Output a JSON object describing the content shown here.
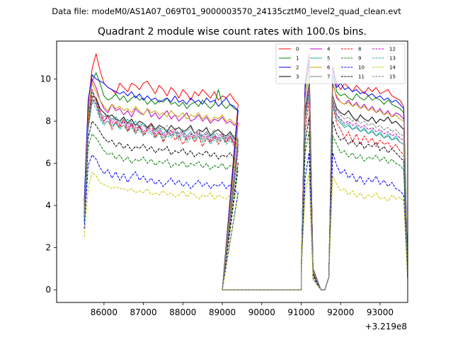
{
  "chart_data": {
    "type": "line",
    "suptitle": "Data file: modeM0/AS1A07_069T01_9000003570_24135cztM0_level2_quad_clean.evt",
    "title": "Quadrant 2 module wise count rates with 100.0s bins.",
    "xlabel": "",
    "ylabel": "",
    "offset_text": "+3.219e8",
    "xlim": [
      84800,
      93700
    ],
    "ylim": [
      -0.6,
      11.8
    ],
    "xticks": [
      86000,
      87000,
      88000,
      89000,
      90000,
      91000,
      92000,
      93000
    ],
    "yticks": [
      0,
      2,
      4,
      6,
      8,
      10
    ],
    "xtick_labels": [
      "86000",
      "87000",
      "88000",
      "89000",
      "90000",
      "91000",
      "92000",
      "93000"
    ],
    "ytick_labels": [
      "0",
      "2",
      "4",
      "6",
      "8",
      "10"
    ],
    "gaps": [
      [
        89000,
        91000
      ],
      [
        91300,
        91700
      ]
    ],
    "series": [
      {
        "name": "0",
        "color": "#ff0000",
        "dash": "solid",
        "seg1": [
          4.0,
          8.8,
          10.5,
          11.2,
          10.4,
          9.8,
          9.6,
          9.5,
          9.3,
          9.8,
          9.6,
          9.4,
          9.8,
          9.7,
          9.5,
          9.8,
          9.9,
          9.6,
          9.3,
          9.7,
          9.5,
          9.2,
          9.6,
          9.4,
          9.1,
          9.5,
          9.3,
          9.0,
          9.4,
          9.2,
          9.5,
          9.3,
          9.1,
          9.4,
          9.0,
          9.2,
          9.1,
          9.3,
          9.0,
          8.8
        ],
        "spike1": [
          9.9,
          11.2,
          10.1
        ],
        "seg2": [
          10.6,
          9.8,
          9.5,
          9.8,
          9.6,
          9.4,
          9.7,
          9.5,
          9.3,
          9.6,
          9.4,
          9.6,
          9.3,
          9.4,
          9.5,
          9.2,
          9.1,
          9.0,
          8.7,
          0.7
        ]
      },
      {
        "name": "1",
        "color": "#008000",
        "dash": "solid",
        "seg1": [
          3.8,
          8.4,
          9.9,
          10.3,
          9.8,
          9.2,
          9.0,
          9.1,
          9.3,
          9.0,
          9.2,
          8.9,
          9.1,
          9.2,
          9.0,
          9.1,
          8.8,
          9.0,
          8.8,
          9.0,
          8.9,
          9.1,
          8.8,
          8.9,
          8.7,
          8.9,
          8.6,
          8.8,
          8.9,
          8.7,
          9.0,
          8.8,
          8.6,
          8.8,
          9.5,
          8.8,
          8.6,
          8.8,
          8.6,
          8.5
        ],
        "spike1": [
          9.5,
          10.8,
          9.8
        ],
        "seg2": [
          10.2,
          9.4,
          9.2,
          9.3,
          9.1,
          9.0,
          9.3,
          9.1,
          9.0,
          9.2,
          9.0,
          9.1,
          9.0,
          8.8,
          9.0,
          8.8,
          8.7,
          8.6,
          8.4,
          0.7
        ]
      },
      {
        "name": "2",
        "color": "#0000ff",
        "dash": "solid",
        "seg1": [
          4.2,
          9.0,
          10.2,
          10.0,
          9.9,
          9.8,
          9.6,
          9.5,
          9.4,
          9.3,
          9.4,
          9.2,
          9.4,
          9.1,
          9.3,
          9.0,
          9.2,
          9.0,
          9.1,
          8.9,
          9.0,
          9.1,
          8.9,
          9.2,
          8.9,
          9.0,
          8.8,
          9.1,
          8.9,
          9.0,
          8.8,
          9.1,
          8.9,
          9.0,
          8.7,
          8.9,
          9.1,
          8.8,
          8.7,
          8.5
        ],
        "spike1": [
          9.8,
          10.9,
          9.9
        ],
        "seg2": [
          10.5,
          9.6,
          9.8,
          9.5,
          9.6,
          9.4,
          9.5,
          9.3,
          9.4,
          9.2,
          9.3,
          9.1,
          9.2,
          9.0,
          9.1,
          8.9,
          9.0,
          8.8,
          8.6,
          0.7
        ]
      },
      {
        "name": "3",
        "color": "#000000",
        "dash": "solid",
        "seg1": [
          3.4,
          7.8,
          9.2,
          9.1,
          8.6,
          8.4,
          8.2,
          8.3,
          8.1,
          8.0,
          8.2,
          7.9,
          8.1,
          7.8,
          8.0,
          7.9,
          7.7,
          7.9,
          7.6,
          7.8,
          7.7,
          7.5,
          7.8,
          7.6,
          7.7,
          7.5,
          7.6,
          7.8,
          7.4,
          7.6,
          7.5,
          7.7,
          7.3,
          7.5,
          7.6,
          7.4,
          7.3,
          7.5,
          7.2,
          7.1
        ],
        "spike1": [
          8.5,
          9.8,
          8.8
        ],
        "seg2": [
          9.2,
          8.6,
          8.4,
          8.3,
          8.5,
          8.2,
          8.0,
          8.3,
          8.1,
          8.0,
          8.2,
          7.9,
          8.1,
          8.0,
          8.2,
          7.9,
          8.0,
          7.8,
          7.6,
          0.6
        ]
      },
      {
        "name": "4",
        "color": "#bf00bf",
        "dash": "solid",
        "seg1": [
          3.6,
          8.2,
          10.0,
          9.6,
          9.0,
          8.6,
          8.4,
          8.8,
          8.5,
          8.6,
          8.3,
          8.5,
          8.2,
          8.6,
          8.4,
          8.3,
          8.6,
          8.2,
          8.4,
          8.1,
          8.3,
          8.5,
          8.1,
          8.3,
          8.0,
          8.2,
          8.4,
          8.0,
          8.1,
          8.3,
          8.0,
          8.2,
          7.9,
          8.1,
          8.0,
          8.2,
          7.9,
          8.0,
          7.8,
          7.9
        ],
        "spike1": [
          9.0,
          10.4,
          9.3
        ],
        "seg2": [
          9.8,
          9.1,
          8.9,
          8.8,
          9.0,
          8.7,
          8.9,
          8.6,
          8.8,
          8.5,
          8.7,
          8.4,
          8.6,
          8.3,
          8.5,
          8.2,
          8.4,
          8.3,
          8.1,
          0.6
        ]
      },
      {
        "name": "5",
        "color": "#20b2aa",
        "dash": "solid",
        "seg1": [
          3.5,
          7.9,
          9.4,
          9.0,
          8.4,
          8.2,
          8.3,
          8.1,
          8.2,
          8.0,
          7.9,
          8.1,
          7.8,
          8.0,
          7.7,
          7.9,
          7.6,
          7.8,
          7.5,
          7.7,
          7.4,
          7.6,
          7.3,
          7.5,
          7.4,
          7.6,
          7.3,
          7.5,
          7.2,
          7.4,
          7.3,
          7.5,
          7.2,
          7.4,
          7.1,
          7.3,
          7.2,
          7.4,
          7.1,
          7.0
        ],
        "spike1": [
          8.3,
          9.6,
          8.6
        ],
        "seg2": [
          9.0,
          8.3,
          8.0,
          7.8,
          7.9,
          7.6,
          7.8,
          7.5,
          7.7,
          7.4,
          7.6,
          7.3,
          7.5,
          7.2,
          7.4,
          7.1,
          7.3,
          7.0,
          6.9,
          0.6
        ]
      },
      {
        "name": "6",
        "color": "#c8a400",
        "dash": "solid",
        "seg1": [
          3.7,
          8.3,
          9.8,
          9.4,
          9.0,
          8.7,
          8.5,
          8.8,
          8.6,
          8.7,
          8.5,
          8.6,
          8.4,
          8.7,
          8.5,
          8.3,
          8.6,
          8.4,
          8.5,
          8.3,
          8.4,
          8.2,
          8.5,
          8.3,
          8.2,
          8.4,
          8.1,
          8.3,
          8.2,
          8.4,
          8.1,
          8.3,
          8.0,
          8.2,
          8.1,
          8.3,
          8.0,
          8.1,
          7.9,
          7.8
        ],
        "spike1": [
          9.1,
          10.3,
          9.2
        ],
        "seg2": [
          9.7,
          9.2,
          8.9,
          8.8,
          8.9,
          8.7,
          8.8,
          8.6,
          8.7,
          8.5,
          8.6,
          8.4,
          8.5,
          8.3,
          8.4,
          8.2,
          8.3,
          8.1,
          8.0,
          0.6
        ]
      },
      {
        "name": "7",
        "color": "#808080",
        "dash": "solid",
        "seg1": [
          3.3,
          7.6,
          9.0,
          8.8,
          8.2,
          7.9,
          8.0,
          7.8,
          7.9,
          7.7,
          7.8,
          7.6,
          7.8,
          7.5,
          7.7,
          7.4,
          7.6,
          7.5,
          7.3,
          7.5,
          7.2,
          7.4,
          7.3,
          7.5,
          7.2,
          7.4,
          7.1,
          7.3,
          7.2,
          7.4,
          7.1,
          7.3,
          7.0,
          7.2,
          7.1,
          7.3,
          7.0,
          7.2,
          6.9,
          6.8
        ],
        "spike1": [
          8.0,
          9.4,
          8.3
        ],
        "seg2": [
          8.8,
          8.1,
          7.9,
          7.7,
          7.8,
          7.6,
          7.7,
          7.5,
          7.6,
          7.4,
          7.5,
          7.3,
          7.4,
          7.2,
          7.3,
          7.1,
          7.2,
          7.0,
          6.9,
          0.6
        ]
      },
      {
        "name": "8",
        "color": "#ff0000",
        "dash": "dashed",
        "seg1": [
          3.6,
          8.0,
          9.5,
          9.0,
          8.5,
          8.0,
          8.3,
          7.6,
          8.0,
          7.7,
          8.1,
          7.5,
          7.9,
          7.4,
          7.8,
          7.3,
          7.6,
          7.9,
          7.2,
          7.5,
          7.0,
          7.4,
          7.6,
          7.1,
          7.3,
          6.9,
          7.2,
          7.4,
          7.0,
          7.3,
          6.8,
          7.2,
          7.0,
          7.3,
          6.9,
          7.2,
          7.0,
          7.3,
          6.9,
          6.6
        ],
        "spike1": [
          7.5,
          9.0,
          7.8
        ],
        "seg2": [
          8.8,
          7.9,
          7.6,
          7.2,
          7.5,
          7.0,
          7.4,
          6.9,
          7.3,
          7.0,
          7.2,
          6.8,
          7.1,
          6.9,
          7.0,
          6.7,
          6.9,
          6.6,
          6.4,
          0.6
        ]
      },
      {
        "name": "9",
        "color": "#008000",
        "dash": "dashed",
        "seg1": [
          3.2,
          6.8,
          7.4,
          7.2,
          6.9,
          6.6,
          6.4,
          6.5,
          6.2,
          6.4,
          6.1,
          6.3,
          6.0,
          6.2,
          6.1,
          6.3,
          6.0,
          6.2,
          5.9,
          6.1,
          6.0,
          6.2,
          5.8,
          6.0,
          5.9,
          6.1,
          5.8,
          6.0,
          5.9,
          6.1,
          5.8,
          6.0,
          5.7,
          5.9,
          5.8,
          6.0,
          5.7,
          5.9,
          5.8,
          5.7
        ],
        "spike1": [
          6.5,
          7.5,
          6.7
        ],
        "seg2": [
          7.3,
          6.9,
          6.5,
          6.6,
          6.3,
          6.5,
          6.2,
          6.4,
          6.1,
          6.3,
          6.2,
          6.4,
          6.1,
          6.3,
          6.0,
          6.2,
          6.0,
          5.9,
          5.7,
          0.5
        ]
      },
      {
        "name": "10",
        "color": "#0000ff",
        "dash": "dashed",
        "seg1": [
          2.9,
          5.9,
          6.4,
          6.2,
          5.8,
          5.5,
          5.7,
          5.3,
          5.6,
          5.2,
          5.5,
          5.1,
          5.4,
          5.6,
          5.2,
          5.4,
          5.1,
          5.3,
          5.0,
          5.2,
          4.9,
          5.1,
          5.3,
          5.0,
          5.2,
          4.9,
          5.1,
          4.8,
          5.0,
          5.2,
          4.9,
          5.1,
          4.8,
          5.0,
          4.9,
          5.1,
          4.8,
          5.0,
          4.7,
          4.6
        ],
        "spike1": [
          5.3,
          6.5,
          5.5
        ],
        "seg2": [
          6.5,
          5.9,
          5.5,
          5.7,
          5.3,
          5.5,
          5.1,
          5.4,
          5.0,
          5.3,
          5.1,
          5.4,
          5.0,
          5.2,
          4.9,
          5.1,
          4.8,
          4.7,
          4.5,
          0.5
        ]
      },
      {
        "name": "11",
        "color": "#000000",
        "dash": "dashed",
        "seg1": [
          3.4,
          7.2,
          8.0,
          7.8,
          7.5,
          7.2,
          7.0,
          7.1,
          6.8,
          7.0,
          6.7,
          6.9,
          6.6,
          6.8,
          6.7,
          6.9,
          6.6,
          6.8,
          6.5,
          6.7,
          6.6,
          6.8,
          6.4,
          6.6,
          6.5,
          6.7,
          6.4,
          6.6,
          6.3,
          6.5,
          6.4,
          6.6,
          6.3,
          6.5,
          6.2,
          6.4,
          6.3,
          6.5,
          6.2,
          6.0
        ],
        "spike1": [
          7.0,
          8.2,
          7.3
        ],
        "seg2": [
          8.0,
          7.4,
          7.1,
          7.2,
          6.9,
          7.1,
          6.8,
          7.0,
          6.7,
          6.9,
          6.8,
          7.0,
          6.6,
          6.8,
          6.5,
          6.7,
          6.5,
          6.3,
          6.1,
          0.5
        ]
      },
      {
        "name": "12",
        "color": "#bf00bf",
        "dash": "dashed",
        "seg1": [
          3.5,
          7.7,
          9.1,
          8.8,
          8.3,
          8.0,
          8.2,
          7.9,
          8.1,
          7.8,
          8.0,
          7.7,
          7.9,
          7.6,
          7.8,
          7.5,
          7.7,
          7.6,
          7.4,
          7.6,
          7.3,
          7.5,
          7.4,
          7.6,
          7.3,
          7.5,
          7.2,
          7.4,
          7.3,
          7.5,
          7.2,
          7.4,
          7.1,
          7.3,
          7.2,
          7.4,
          7.1,
          7.3,
          7.0,
          6.9
        ],
        "spike1": [
          8.2,
          9.5,
          8.5
        ],
        "seg2": [
          9.0,
          8.3,
          8.1,
          7.9,
          8.0,
          7.8,
          7.9,
          7.7,
          7.8,
          7.6,
          7.7,
          7.5,
          7.6,
          7.4,
          7.5,
          7.3,
          7.4,
          7.2,
          7.1,
          0.6
        ]
      },
      {
        "name": "13",
        "color": "#20b2aa",
        "dash": "dashed",
        "seg1": [
          3.4,
          7.6,
          8.9,
          8.6,
          8.1,
          7.8,
          8.0,
          7.7,
          7.9,
          7.6,
          7.8,
          7.5,
          7.7,
          7.4,
          7.6,
          7.3,
          7.5,
          7.4,
          7.2,
          7.4,
          7.1,
          7.3,
          7.2,
          7.4,
          7.1,
          7.3,
          7.0,
          7.2,
          7.1,
          7.3,
          7.0,
          7.2,
          6.9,
          7.1,
          7.0,
          7.2,
          6.9,
          7.1,
          6.8,
          6.7
        ],
        "spike1": [
          8.0,
          9.3,
          8.3
        ],
        "seg2": [
          8.8,
          8.1,
          7.9,
          7.7,
          7.8,
          7.6,
          7.7,
          7.5,
          7.6,
          7.4,
          7.5,
          7.3,
          7.4,
          7.2,
          7.3,
          7.1,
          7.2,
          7.0,
          6.9,
          0.6
        ]
      },
      {
        "name": "14",
        "color": "#c8c800",
        "dash": "dashed",
        "seg1": [
          2.5,
          4.8,
          5.6,
          5.4,
          5.1,
          5.0,
          4.9,
          4.8,
          4.9,
          4.8,
          4.8,
          4.7,
          4.8,
          4.6,
          4.7,
          4.6,
          4.8,
          4.5,
          4.6,
          4.5,
          4.7,
          4.5,
          4.6,
          4.4,
          4.5,
          4.7,
          4.4,
          4.6,
          4.5,
          4.3,
          4.5,
          4.4,
          4.6,
          4.3,
          4.5,
          4.4,
          4.3,
          4.5,
          4.4,
          4.5
        ],
        "spike1": [
          4.6,
          5.5,
          4.7
        ],
        "seg2": [
          5.4,
          5.0,
          4.7,
          4.8,
          4.5,
          4.7,
          4.4,
          4.6,
          4.3,
          4.5,
          4.4,
          4.6,
          4.3,
          4.4,
          4.2,
          4.5,
          4.3,
          4.4,
          4.2,
          0.5
        ]
      },
      {
        "name": "15",
        "color": "#808080",
        "dash": "dashed",
        "seg1": [
          3.5,
          7.8,
          9.2,
          8.9,
          8.4,
          8.2,
          8.3,
          8.0,
          8.2,
          7.9,
          8.1,
          7.8,
          8.0,
          7.7,
          7.9,
          7.8,
          7.6,
          7.8,
          7.5,
          7.7,
          7.6,
          7.8,
          7.5,
          7.7,
          7.4,
          7.6,
          7.5,
          7.7,
          7.4,
          7.6,
          7.3,
          7.5,
          7.4,
          7.6,
          7.3,
          7.5,
          7.2,
          7.4,
          7.3,
          7.2
        ],
        "spike1": [
          8.4,
          9.7,
          8.6
        ],
        "seg2": [
          9.2,
          8.5,
          8.3,
          8.1,
          8.2,
          8.0,
          8.1,
          7.9,
          8.0,
          7.8,
          7.9,
          7.7,
          7.8,
          7.6,
          7.7,
          7.5,
          7.6,
          7.4,
          7.3,
          0.6
        ]
      }
    ]
  }
}
